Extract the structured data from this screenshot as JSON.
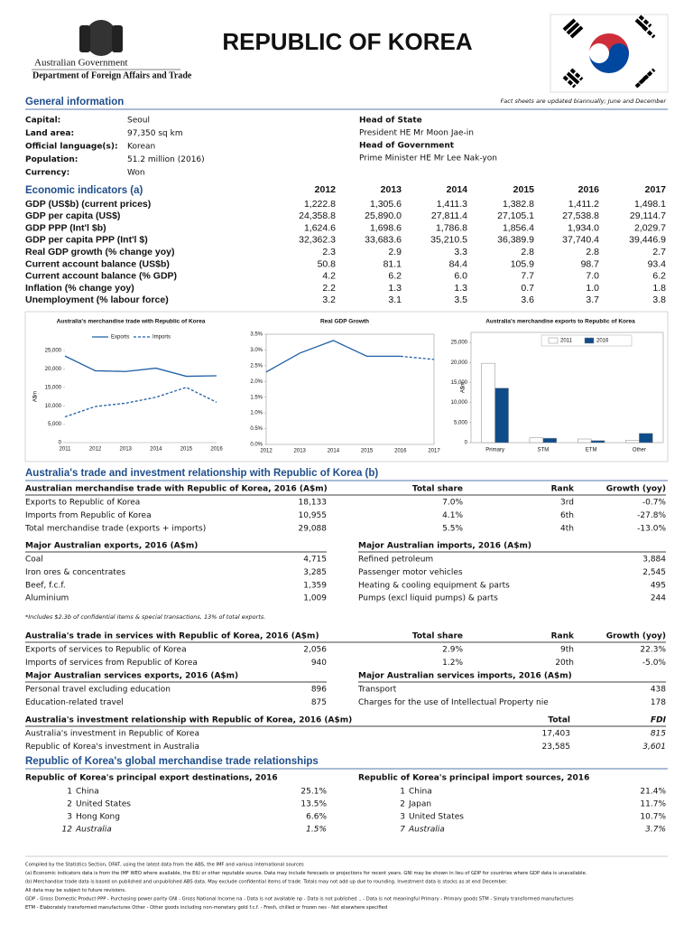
{
  "header": {
    "org1": "Australian Government",
    "org2": "Department of Foreign Affairs and Trade",
    "title": "REPUBLIC OF KOREA"
  },
  "general": {
    "heading": "General information",
    "note": "Fact sheets are updated biannually; June and December",
    "rows": [
      [
        "Capital:",
        "Seoul"
      ],
      [
        "Land area:",
        "97,350 sq km"
      ],
      [
        "Official language(s):",
        "Korean"
      ],
      [
        "Population:",
        "51.2 million (2016)"
      ],
      [
        "Currency:",
        "Won"
      ]
    ],
    "head_of_state_label": "Head of State",
    "head_of_state": "President HE Mr Moon Jae-in",
    "head_of_government_label": "Head of Government",
    "head_of_government": "Prime Minister HE Mr Lee Nak-yon"
  },
  "economic": {
    "heading": "Economic indicators (a)",
    "years": [
      "2012",
      "2013",
      "2014",
      "2015",
      "2016",
      "2017"
    ],
    "rows": [
      {
        "label": "GDP (US$b) (current prices)",
        "values": [
          "1,222.8",
          "1,305.6",
          "1,411.3",
          "1,382.8",
          "1,411.2",
          "1,498.1"
        ]
      },
      {
        "label": "GDP per capita (US$)",
        "values": [
          "24,358.8",
          "25,890.0",
          "27,811.4",
          "27,105.1",
          "27,538.8",
          "29,114.7"
        ]
      },
      {
        "label": "GDP PPP (Int'l $b)",
        "values": [
          "1,624.6",
          "1,698.6",
          "1,786.8",
          "1,856.4",
          "1,934.0",
          "2,029.7"
        ]
      },
      {
        "label": "GDP per capita PPP (Int'l $)",
        "values": [
          "32,362.3",
          "33,683.6",
          "35,210.5",
          "36,389.9",
          "37,740.4",
          "39,446.9"
        ]
      },
      {
        "label": "Real GDP growth (% change yoy)",
        "values": [
          "2.3",
          "2.9",
          "3.3",
          "2.8",
          "2.8",
          "2.7"
        ]
      },
      {
        "label": "Current account balance (US$b)",
        "values": [
          "50.8",
          "81.1",
          "84.4",
          "105.9",
          "98.7",
          "93.4"
        ]
      },
      {
        "label": "Current account balance (% GDP)",
        "values": [
          "4.2",
          "6.2",
          "6.0",
          "7.7",
          "7.0",
          "6.2"
        ]
      },
      {
        "label": "Inflation (% change yoy)",
        "values": [
          "2.2",
          "1.3",
          "1.3",
          "0.7",
          "1.0",
          "1.8"
        ]
      },
      {
        "label": "Unemployment (% labour force)",
        "values": [
          "3.2",
          "3.1",
          "3.5",
          "3.6",
          "3.7",
          "3.8"
        ]
      }
    ]
  },
  "chart_data": [
    {
      "type": "line",
      "title": "Australia's merchandise trade with Republic of Korea",
      "y_label": "A$m",
      "frame": false,
      "categories": [
        "2011",
        "2012",
        "2013",
        "2014",
        "2015",
        "2016"
      ],
      "series": [
        {
          "name": "Exports",
          "color": "#1f5fa6",
          "dashed": false,
          "values": [
            23500,
            19500,
            19300,
            20200,
            18000,
            18133
          ]
        },
        {
          "name": "Imports",
          "color": "#1f5fa6",
          "dashed": true,
          "values": [
            7000,
            9800,
            10700,
            12300,
            15000,
            10955
          ]
        }
      ],
      "ylim": [
        0,
        25000
      ],
      "yticks": [
        0,
        {
          "value": 5000,
          "label": "5,000"
        },
        {
          "value": 10000,
          "label": "10,000"
        },
        {
          "value": 15000,
          "label": "15,000"
        },
        {
          "value": 20000,
          "label": "20,000"
        },
        {
          "value": 25000,
          "label": "25,000"
        }
      ]
    },
    {
      "type": "line",
      "title": "Real GDP Growth",
      "frame": true,
      "categories": [
        "2012",
        "2013",
        "2014",
        "2015",
        "2016",
        "2017"
      ],
      "series": [
        {
          "color": "#1f5fa6",
          "dashed": false,
          "values": [
            2.3,
            2.9,
            3.3,
            2.8,
            2.8,
            null
          ]
        },
        {
          "color": "#1f5fa6",
          "dashed": true,
          "values": [
            null,
            null,
            null,
            null,
            2.8,
            2.7
          ]
        }
      ],
      "ylim": [
        0,
        3.5
      ],
      "yticks": [
        {
          "value": 0,
          "label": "0.0%"
        },
        {
          "value": 0.5,
          "label": "0.5%"
        },
        {
          "value": 1,
          "label": "1.0%"
        },
        {
          "value": 1.5,
          "label": "1.5%"
        },
        {
          "value": 2,
          "label": "2.0%"
        },
        {
          "value": 2.5,
          "label": "2.5%"
        },
        {
          "value": 3,
          "label": "3.0%"
        },
        {
          "value": 3.5,
          "label": "3.5%"
        }
      ]
    },
    {
      "type": "bar",
      "title": "Australia's merchandise exports to Republic of Korea",
      "y_label": "A$m",
      "frame": true,
      "categories": [
        "Primary",
        "STM",
        "ETM",
        "Other"
      ],
      "series": [
        {
          "name": "2011",
          "color": "#ffffff",
          "values": [
            19800,
            1200,
            900,
            600
          ]
        },
        {
          "name": "2016",
          "color": "#0f4c8a",
          "values": [
            13600,
            1100,
            500,
            2300
          ]
        }
      ],
      "ylim": [
        0,
        27500
      ],
      "yticks": [
        0,
        {
          "value": 5000,
          "label": "5,000"
        },
        {
          "value": 10000,
          "label": "10,000"
        },
        {
          "value": 15000,
          "label": "15,000"
        },
        {
          "value": 20000,
          "label": "20,000"
        },
        {
          "value": 25000,
          "label": "25,000"
        }
      ]
    }
  ],
  "trade": {
    "heading": "Australia's trade and investment relationship with Republic of Korea (b)",
    "merchandise": {
      "columns": [
        "Australian merchandise trade with Republic of Korea, 2016 (A$m)",
        "Total share",
        "Rank",
        "Growth (yoy)"
      ],
      "rows": [
        [
          "Exports to Republic of Korea",
          "18,133",
          "7.0%",
          "3rd",
          "-0.7%"
        ],
        [
          "Imports from Republic of Korea",
          "10,955",
          "4.1%",
          "6th",
          "-27.8%"
        ],
        [
          "Total merchandise trade (exports + imports)",
          "29,088",
          "5.5%",
          "4th",
          "-13.0%"
        ]
      ]
    },
    "exports": {
      "title": "Major Australian exports, 2016 (A$m)",
      "rows": [
        [
          "Coal",
          "4,715"
        ],
        [
          "Iron ores & concentrates",
          "3,285"
        ],
        [
          "Beef, f.c.f.",
          "1,359"
        ],
        [
          "Aluminium",
          "1,009"
        ]
      ]
    },
    "imports": {
      "title": "Major Australian imports, 2016 (A$m)",
      "rows": [
        [
          "Refined petroleum",
          "3,884"
        ],
        [
          "Passenger motor vehicles",
          "2,545"
        ],
        [
          "Heating & cooling equipment & parts",
          "495"
        ],
        [
          "Pumps (excl liquid pumps) & parts",
          "244"
        ]
      ]
    },
    "note": "*Includes $2.3b of confidential items & special transactions, 13% of total exports.",
    "services": {
      "columns": [
        "Australia's trade in services with Republic of Korea, 2016 (A$m)",
        "Total share",
        "Rank",
        "Growth (yoy)"
      ],
      "rows": [
        [
          "Exports of services to Republic of Korea",
          "2,056",
          "2.9%",
          "9th",
          "22.3%"
        ],
        [
          "Imports of services from Republic of Korea",
          "940",
          "1.2%",
          "20th",
          "-5.0%"
        ]
      ]
    },
    "services_exports": {
      "title": "Major Australian services exports, 2016 (A$m)",
      "rows": [
        [
          "Personal travel excluding education",
          "896"
        ],
        [
          "Education-related travel",
          "875"
        ]
      ]
    },
    "services_imports": {
      "title": "Major Australian services imports, 2016 (A$m)",
      "rows": [
        [
          "Transport",
          "438"
        ],
        [
          "Charges for the use of Intellectual Property nie",
          "178"
        ]
      ]
    },
    "investment": {
      "columns": [
        "Australia's investment relationship with Republic of Korea, 2016 (A$m)",
        "Total",
        "FDI"
      ],
      "rows": [
        [
          "Australia's investment in Republic of Korea",
          "17,403",
          "815"
        ],
        [
          "Republic of Korea's investment in Australia",
          "23,585",
          "3,601"
        ]
      ]
    }
  },
  "global": {
    "heading": "Republic of Korea's global merchandise trade relationships",
    "export_destinations": {
      "title": "Republic of Korea's principal export destinations, 2016",
      "rows": [
        [
          "1",
          "China",
          "25.1%"
        ],
        [
          "2",
          "United States",
          "13.5%"
        ],
        [
          "3",
          "Hong Kong",
          "6.6%"
        ],
        [
          "12",
          "Australia",
          "1.5%"
        ]
      ]
    },
    "import_sources": {
      "title": "Republic of Korea's principal import sources, 2016",
      "rows": [
        [
          "1",
          "China",
          "21.4%"
        ],
        [
          "2",
          "Japan",
          "11.7%"
        ],
        [
          "3",
          "United States",
          "10.7%"
        ],
        [
          "7",
          "Australia",
          "3.7%"
        ]
      ]
    }
  },
  "footnotes": [
    "Compiled by the Statistics Section, DFAT, using the latest data from the ABS, the IMF and various international sources",
    "(a) Economic indicators data is from the IMF WEO where available, the EIU or other reputable source.  Data may include forecasts or projections for recent years.  GNI may be shown in lieu of GDP for countries where GDP data is unavailable.",
    "(b) Merchandise trade data is based on published and unpublished ABS data.  May exclude confidential items of trade.  Totals may not add up due to rounding.  Investment data is stocks as at end December.",
    "All data may be subject to future revisions.",
    "GDP - Gross Domestic Product  PPP - Purchasing power parity  GNI - Gross National Income  na - Data is not available  np - Data is not published  .. - Data is not meaningful  Primary - Primary goods  STM - Simply transformed manufactures",
    "ETM - Elaborately transformed manufactures  Other - Other goods including non-monetary gold  f.c.f. - Fresh, chilled or frozen  nes - Not elsewhere specified"
  ]
}
